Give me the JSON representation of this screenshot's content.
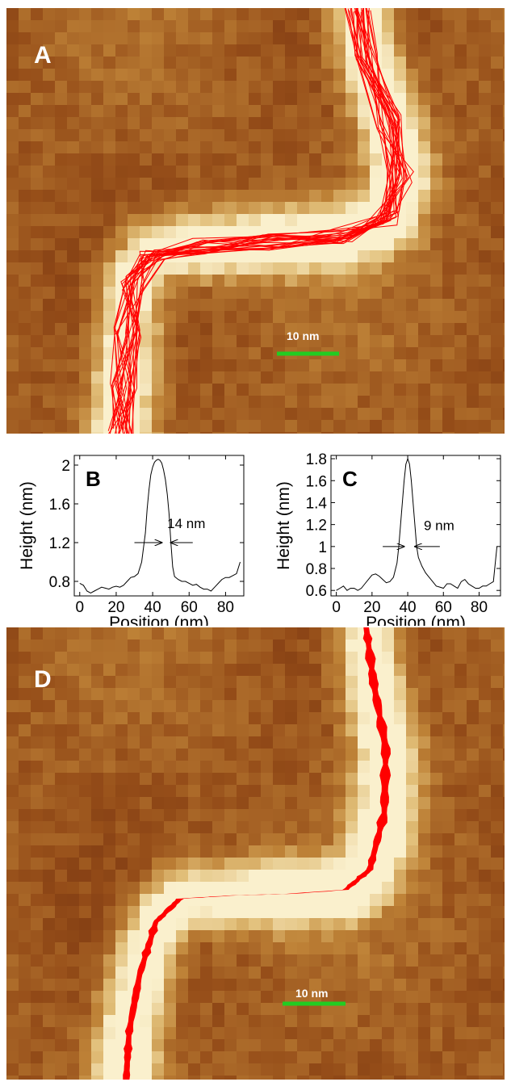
{
  "panels": {
    "a": {
      "letter": "A",
      "scale_label": "10 nm"
    },
    "d": {
      "letter": "D",
      "scale_label": "10 nm"
    }
  },
  "colors": {
    "trace": "#ff0000",
    "scalebar": "#22cc22"
  },
  "chart_data": [
    {
      "type": "line",
      "panel": "B",
      "xlabel": "Position (nm)",
      "ylabel": "Height (nm)",
      "xlim": [
        -3,
        90
      ],
      "ylim": [
        0.65,
        2.1
      ],
      "xticks": [
        0,
        20,
        40,
        60,
        80
      ],
      "yticks": [
        0.8,
        1.2,
        1.6,
        2
      ],
      "annotation": "14 nm",
      "annotation_x": 48,
      "annotation_y": 1.35,
      "arrow_left": [
        30,
        45
      ],
      "arrow_right": [
        50,
        62
      ],
      "arrow_y": 1.2,
      "series": [
        {
          "x": [
            0,
            2,
            4,
            6,
            8,
            10,
            12,
            14,
            16,
            18,
            20,
            22,
            24,
            26,
            28,
            30,
            32,
            34,
            36,
            37,
            38,
            39,
            40,
            41,
            42,
            43,
            44,
            45,
            46,
            47,
            48,
            49,
            50,
            51,
            52,
            54,
            56,
            58,
            60,
            62,
            64,
            66,
            68,
            70,
            72,
            74,
            76,
            78,
            80,
            82,
            84,
            86,
            88
          ],
          "y": [
            0.78,
            0.76,
            0.7,
            0.68,
            0.7,
            0.72,
            0.74,
            0.73,
            0.72,
            0.74,
            0.75,
            0.74,
            0.76,
            0.8,
            0.84,
            0.85,
            0.88,
            1.0,
            1.3,
            1.55,
            1.75,
            1.9,
            1.98,
            2.03,
            2.05,
            2.06,
            2.05,
            2.02,
            1.95,
            1.85,
            1.7,
            1.5,
            1.2,
            0.95,
            0.85,
            0.82,
            0.8,
            0.8,
            0.78,
            0.76,
            0.77,
            0.74,
            0.72,
            0.72,
            0.7,
            0.74,
            0.78,
            0.82,
            0.84,
            0.84,
            0.86,
            0.88,
            1.0
          ]
        }
      ]
    },
    {
      "type": "line",
      "panel": "C",
      "xlabel": "Position (nm)",
      "ylabel": "Height (nm)",
      "xlim": [
        -3,
        92
      ],
      "ylim": [
        0.55,
        1.83
      ],
      "xticks": [
        0,
        20,
        40,
        60,
        80
      ],
      "yticks": [
        0.6,
        0.8,
        1,
        1.2,
        1.4,
        1.6,
        1.8
      ],
      "annotation": "9 nm",
      "annotation_x": 49,
      "annotation_y": 1.15,
      "arrow_left": [
        26,
        38
      ],
      "arrow_right": [
        44,
        58
      ],
      "arrow_y": 1.0,
      "series": [
        {
          "x": [
            0,
            2,
            4,
            6,
            8,
            10,
            12,
            14,
            16,
            18,
            20,
            22,
            24,
            26,
            28,
            30,
            32,
            34,
            35,
            36,
            37,
            38,
            39,
            40,
            41,
            42,
            43,
            44,
            45,
            46,
            48,
            50,
            52,
            54,
            56,
            58,
            60,
            62,
            64,
            66,
            68,
            70,
            72,
            74,
            76,
            78,
            80,
            82,
            84,
            86,
            88,
            90
          ],
          "y": [
            0.6,
            0.62,
            0.64,
            0.6,
            0.62,
            0.62,
            0.6,
            0.62,
            0.66,
            0.7,
            0.74,
            0.75,
            0.73,
            0.7,
            0.67,
            0.68,
            0.72,
            0.85,
            1.0,
            1.2,
            1.4,
            1.6,
            1.75,
            1.8,
            1.75,
            1.6,
            1.4,
            1.2,
            1.0,
            0.9,
            0.82,
            0.76,
            0.72,
            0.68,
            0.64,
            0.63,
            0.62,
            0.66,
            0.66,
            0.64,
            0.62,
            0.68,
            0.7,
            0.66,
            0.64,
            0.62,
            0.62,
            0.64,
            0.64,
            0.66,
            0.68,
            1.0
          ]
        }
      ]
    }
  ]
}
